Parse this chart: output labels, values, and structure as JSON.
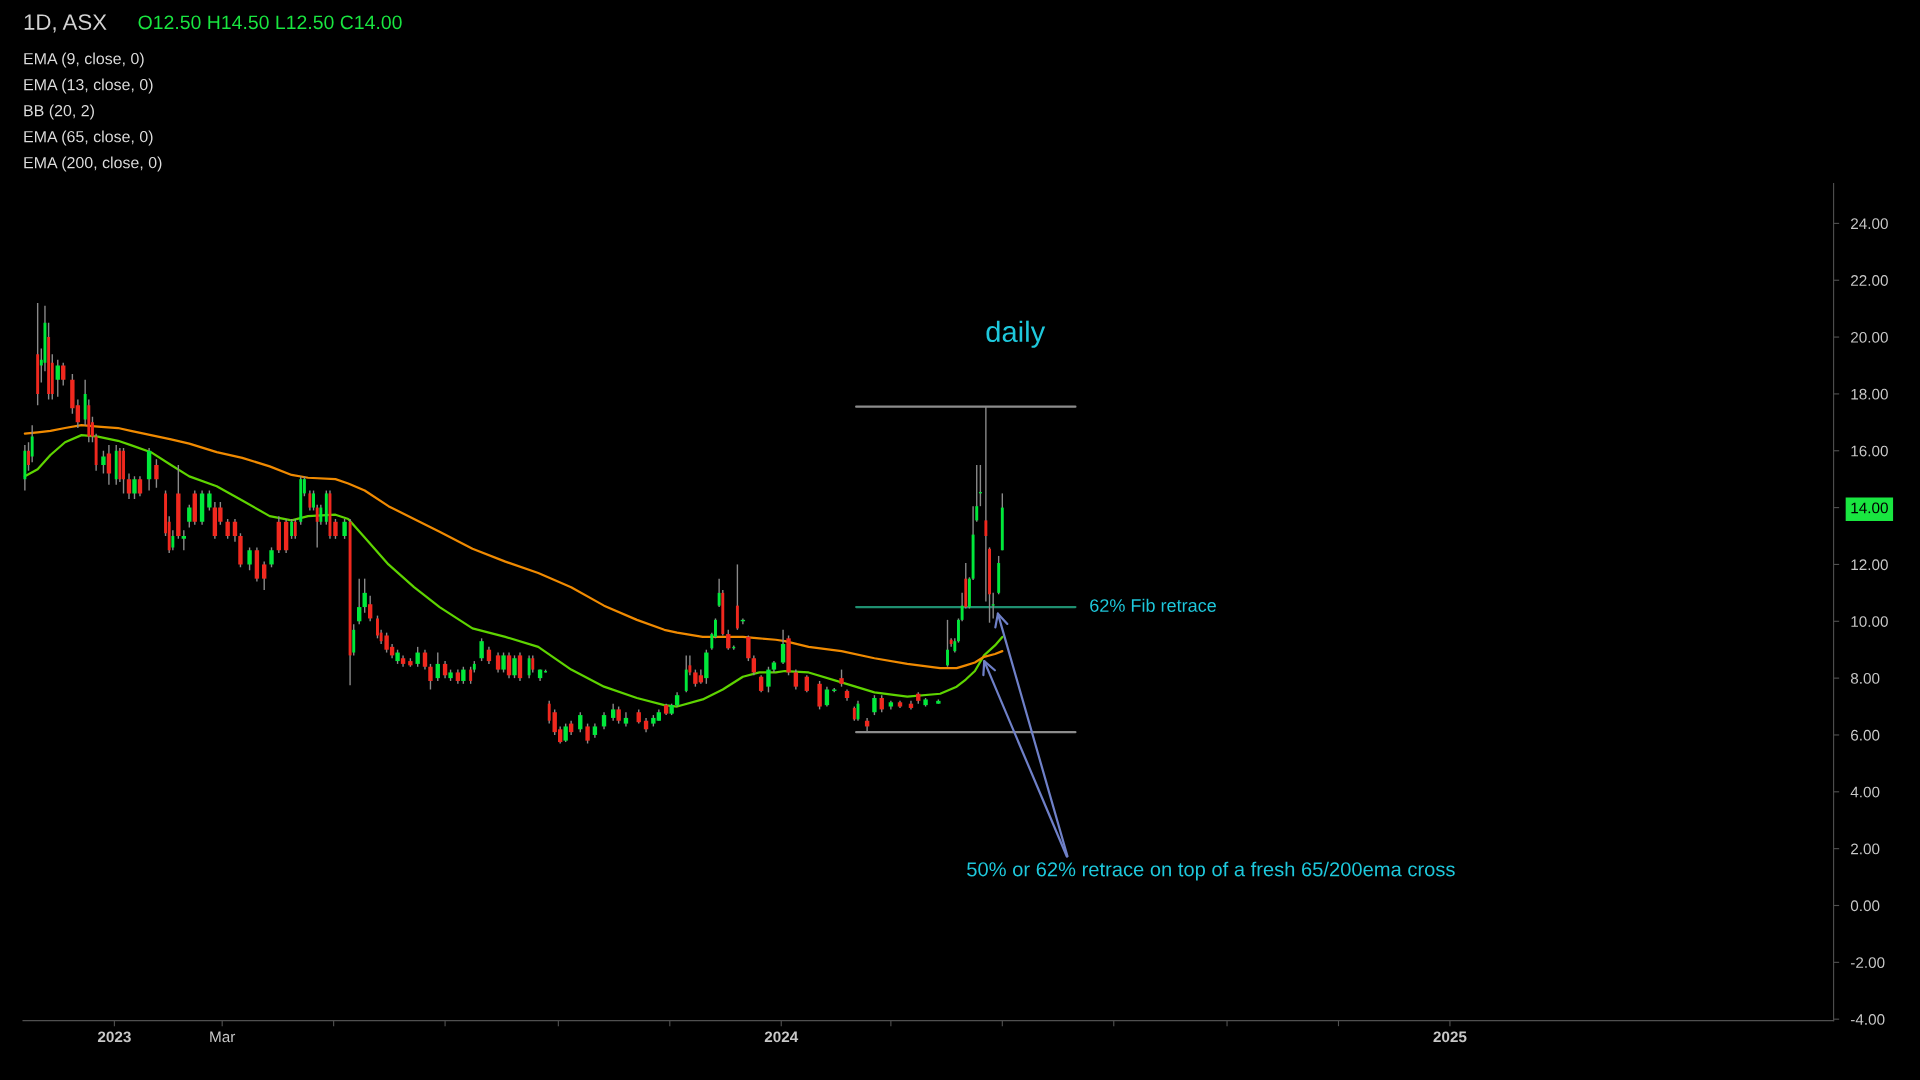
{
  "chart_data": {
    "type": "candlestick",
    "title": "daily",
    "subtitle": "1D, ASX",
    "x": [
      "2022-11-13",
      "2022-11-15",
      "2022-11-17",
      "2022-11-20",
      "2022-11-22",
      "2022-11-24",
      "2022-11-26",
      "2022-11-28",
      "2022-12-01",
      "2022-12-04",
      "2022-12-09",
      "2022-12-12",
      "2022-12-16",
      "2022-12-18",
      "2022-12-20",
      "2022-12-22",
      "2022-12-26",
      "2022-12-29",
      "2023-01-02",
      "2023-01-04",
      "2023-01-06",
      "2023-01-09",
      "2023-01-12",
      "2023-01-15",
      "2023-01-20",
      "2023-01-24",
      "2023-01-29",
      "2023-01-31",
      "2023-02-02",
      "2023-02-05",
      "2023-02-08",
      "2023-02-11",
      "2023-02-14",
      "2023-02-18",
      "2023-02-22",
      "2023-02-25",
      "2023-02-28",
      "2023-03-04",
      "2023-03-08",
      "2023-03-11",
      "2023-03-16",
      "2023-03-20",
      "2023-03-24",
      "2023-03-28",
      "2023-04-01",
      "2023-04-05",
      "2023-04-08",
      "2023-04-10",
      "2023-04-13",
      "2023-04-15",
      "2023-04-18",
      "2023-04-20",
      "2023-04-22",
      "2023-04-24",
      "2023-04-27",
      "2023-04-29",
      "2023-05-02",
      "2023-05-07",
      "2023-05-10",
      "2023-05-12",
      "2023-05-15",
      "2023-05-18",
      "2023-05-21",
      "2023-05-25",
      "2023-05-27",
      "2023-05-30",
      "2023-06-02",
      "2023-06-05",
      "2023-06-08",
      "2023-06-12",
      "2023-06-16",
      "2023-06-20",
      "2023-06-23",
      "2023-06-27",
      "2023-07-01",
      "2023-07-04",
      "2023-07-08",
      "2023-07-11",
      "2023-07-15",
      "2023-07-17",
      "2023-07-21",
      "2023-07-25",
      "2023-07-30",
      "2023-08-02",
      "2023-08-05",
      "2023-08-08",
      "2023-08-11",
      "2023-08-16",
      "2023-08-18",
      "2023-08-22",
      "2023-08-25",
      "2023-08-27",
      "2023-08-30",
      "2023-09-02",
      "2023-09-05",
      "2023-09-08",
      "2023-09-13",
      "2023-09-17",
      "2023-09-21",
      "2023-09-26",
      "2023-10-01",
      "2023-10-04",
      "2023-10-08",
      "2023-10-15",
      "2023-10-19",
      "2023-10-23",
      "2023-10-26",
      "2023-10-30",
      "2023-11-02",
      "2023-11-05",
      "2023-11-10",
      "2023-11-12",
      "2023-11-15",
      "2023-11-18",
      "2023-11-21",
      "2023-11-24",
      "2023-11-26",
      "2023-11-28",
      "2023-11-30",
      "2023-12-03",
      "2023-12-06",
      "2023-12-08",
      "2023-12-11",
      "2023-12-14",
      "2023-12-17",
      "2023-12-21",
      "2023-12-25",
      "2023-12-28",
      "2024-01-02",
      "2024-01-05",
      "2024-01-09",
      "2024-01-15",
      "2024-01-22",
      "2024-01-26",
      "2024-01-30",
      "2024-02-03",
      "2024-02-06",
      "2024-02-10",
      "2024-02-12",
      "2024-02-17",
      "2024-02-21",
      "2024-02-25",
      "2024-03-01",
      "2024-03-06",
      "2024-03-12",
      "2024-03-16",
      "2024-03-20",
      "2024-03-27",
      "2024-04-01",
      "2024-04-03",
      "2024-04-05",
      "2024-04-07",
      "2024-04-09",
      "2024-04-11",
      "2024-04-13",
      "2024-04-15",
      "2024-04-17",
      "2024-04-19",
      "2024-04-22",
      "2024-04-24",
      "2024-04-26",
      "2024-04-29",
      "2024-05-01"
    ],
    "ohlc": [
      [
        15.0,
        16.2,
        14.6,
        16.0
      ],
      [
        16.0,
        16.3,
        15.3,
        15.5
      ],
      [
        15.8,
        16.9,
        15.6,
        16.5
      ],
      [
        19.4,
        21.2,
        17.6,
        18.0
      ],
      [
        19.0,
        19.6,
        18.4,
        19.2
      ],
      [
        19.1,
        21.1,
        18.8,
        20.5
      ],
      [
        20.0,
        20.5,
        17.8,
        18.0
      ],
      [
        19.1,
        19.4,
        17.8,
        18.0
      ],
      [
        18.5,
        19.2,
        17.9,
        19.0
      ],
      [
        19.0,
        19.1,
        18.3,
        18.5
      ],
      [
        18.5,
        18.7,
        17.3,
        17.5
      ],
      [
        17.6,
        17.8,
        16.8,
        17.0
      ],
      [
        17.1,
        18.5,
        16.9,
        18.0
      ],
      [
        17.6,
        17.8,
        16.3,
        16.5
      ],
      [
        17.0,
        17.2,
        16.3,
        16.5
      ],
      [
        16.5,
        16.6,
        15.3,
        15.5
      ],
      [
        15.5,
        16.0,
        15.2,
        15.8
      ],
      [
        15.9,
        16.2,
        14.8,
        15.2
      ],
      [
        15.0,
        16.2,
        14.8,
        16.0
      ],
      [
        16.0,
        16.1,
        14.9,
        15.0
      ],
      [
        16.0,
        16.1,
        14.5,
        15.0
      ],
      [
        15.0,
        15.2,
        14.3,
        14.5
      ],
      [
        14.5,
        15.1,
        14.3,
        15.0
      ],
      [
        15.0,
        15.1,
        14.4,
        14.5
      ],
      [
        15.0,
        16.1,
        14.6,
        16.0
      ],
      [
        15.5,
        15.7,
        14.7,
        15.0
      ],
      [
        14.5,
        14.6,
        13.0,
        13.1
      ],
      [
        13.5,
        13.7,
        12.4,
        12.5
      ],
      [
        12.6,
        13.2,
        12.5,
        13.0
      ],
      [
        14.5,
        15.5,
        12.9,
        13.0
      ],
      [
        12.9,
        13.2,
        12.5,
        13.0
      ],
      [
        13.5,
        14.1,
        13.3,
        14.0
      ],
      [
        14.5,
        14.6,
        13.4,
        13.5
      ],
      [
        13.5,
        14.6,
        13.4,
        14.5
      ],
      [
        14.0,
        14.6,
        13.9,
        14.5
      ],
      [
        14.0,
        14.2,
        12.9,
        13.0
      ],
      [
        14.0,
        14.2,
        13.4,
        13.5
      ],
      [
        13.5,
        13.6,
        12.9,
        13.0
      ],
      [
        13.5,
        13.6,
        12.8,
        13.0
      ],
      [
        13.0,
        13.1,
        11.9,
        12.0
      ],
      [
        12.0,
        12.6,
        11.8,
        12.5
      ],
      [
        12.5,
        12.6,
        11.4,
        11.5
      ],
      [
        12.0,
        12.1,
        11.1,
        11.5
      ],
      [
        12.0,
        12.6,
        11.9,
        12.5
      ],
      [
        13.5,
        13.7,
        12.4,
        12.5
      ],
      [
        13.5,
        13.6,
        12.4,
        12.5
      ],
      [
        13.0,
        13.6,
        12.9,
        13.5
      ],
      [
        13.5,
        13.6,
        12.9,
        13.0
      ],
      [
        13.5,
        15.1,
        13.4,
        15.0
      ],
      [
        14.5,
        15.1,
        14.4,
        15.0
      ],
      [
        14.5,
        14.6,
        13.9,
        14.0
      ],
      [
        14.0,
        14.6,
        13.9,
        14.5
      ],
      [
        14.0,
        14.1,
        12.6,
        13.5
      ],
      [
        13.5,
        14.1,
        13.4,
        14.0
      ],
      [
        13.5,
        14.6,
        13.4,
        14.5
      ],
      [
        14.5,
        14.6,
        12.9,
        13.0
      ],
      [
        13.5,
        13.6,
        12.9,
        13.0
      ],
      [
        13.0,
        13.6,
        12.9,
        13.5
      ],
      [
        13.5,
        13.6,
        7.75,
        8.8
      ],
      [
        8.9,
        9.9,
        8.8,
        9.7
      ],
      [
        10.0,
        11.5,
        9.9,
        10.5
      ],
      [
        10.5,
        11.5,
        10.3,
        11.0
      ],
      [
        10.6,
        10.9,
        10.0,
        10.1
      ],
      [
        10.1,
        10.2,
        9.4,
        9.5
      ],
      [
        9.6,
        9.7,
        9.2,
        9.3
      ],
      [
        9.5,
        9.6,
        8.9,
        9.0
      ],
      [
        9.1,
        9.2,
        8.7,
        8.8
      ],
      [
        8.6,
        9.0,
        8.5,
        8.9
      ],
      [
        8.7,
        8.8,
        8.4,
        8.5
      ],
      [
        8.6,
        8.7,
        8.4,
        8.45
      ],
      [
        8.5,
        9.1,
        8.4,
        8.9
      ],
      [
        8.9,
        9.0,
        8.3,
        8.4
      ],
      [
        8.4,
        8.5,
        7.6,
        7.9
      ],
      [
        8.0,
        8.9,
        7.9,
        8.5
      ],
      [
        8.5,
        8.6,
        8.0,
        8.1
      ],
      [
        8.0,
        8.3,
        7.9,
        8.2
      ],
      [
        8.2,
        8.3,
        7.8,
        7.9
      ],
      [
        7.9,
        8.4,
        7.8,
        8.3
      ],
      [
        8.3,
        8.4,
        7.8,
        7.9
      ],
      [
        8.3,
        8.6,
        8.2,
        8.5
      ],
      [
        8.7,
        9.4,
        8.6,
        9.3
      ],
      [
        9.0,
        9.1,
        8.5,
        8.6
      ],
      [
        8.8,
        8.9,
        8.2,
        8.3
      ],
      [
        8.3,
        8.9,
        8.2,
        8.8
      ],
      [
        8.8,
        8.9,
        8.0,
        8.1
      ],
      [
        8.1,
        8.8,
        8.0,
        8.7
      ],
      [
        8.8,
        8.9,
        7.9,
        8.0
      ],
      [
        8.1,
        8.8,
        8.0,
        8.7
      ],
      [
        8.7,
        8.8,
        8.2,
        8.3
      ],
      [
        8.0,
        8.3,
        7.9,
        8.3
      ],
      [
        8.2,
        8.3,
        8.2,
        8.25
      ],
      [
        7.1,
        7.2,
        6.4,
        6.5
      ],
      [
        6.8,
        6.9,
        6.0,
        6.1
      ],
      [
        6.2,
        6.3,
        5.7,
        5.75
      ],
      [
        5.8,
        6.4,
        5.75,
        6.3
      ],
      [
        6.4,
        6.5,
        6.0,
        6.1
      ],
      [
        6.2,
        6.8,
        6.1,
        6.7
      ],
      [
        6.3,
        6.4,
        5.7,
        5.8
      ],
      [
        6.0,
        6.4,
        5.9,
        6.3
      ],
      [
        6.3,
        6.8,
        6.2,
        6.7
      ],
      [
        6.6,
        7.1,
        6.5,
        6.9
      ],
      [
        6.9,
        7.0,
        6.4,
        6.5
      ],
      [
        6.4,
        6.8,
        6.3,
        6.6
      ],
      [
        6.8,
        6.9,
        6.4,
        6.45
      ],
      [
        6.5,
        6.6,
        6.1,
        6.2
      ],
      [
        6.4,
        6.7,
        6.3,
        6.6
      ],
      [
        6.5,
        6.9,
        6.5,
        6.8
      ],
      [
        7.05,
        7.1,
        6.7,
        6.75
      ],
      [
        6.75,
        7.1,
        6.7,
        7.05
      ],
      [
        7.05,
        7.5,
        7.0,
        7.4
      ],
      [
        7.55,
        8.8,
        7.5,
        8.3
      ],
      [
        8.45,
        8.8,
        8.1,
        8.2
      ],
      [
        8.2,
        8.3,
        7.7,
        7.8
      ],
      [
        8.1,
        8.3,
        7.8,
        7.85
      ],
      [
        8.0,
        9.0,
        7.8,
        8.9
      ],
      [
        9.05,
        9.6,
        9.0,
        9.55
      ],
      [
        9.45,
        10.1,
        9.4,
        10.05
      ],
      [
        10.55,
        11.5,
        10.5,
        11.0
      ],
      [
        11.0,
        11.1,
        9.5,
        9.55
      ],
      [
        9.55,
        9.7,
        9.0,
        9.05
      ],
      [
        9.05,
        9.15,
        9.0,
        9.1
      ],
      [
        10.55,
        12.0,
        9.7,
        9.75
      ],
      [
        10.0,
        10.1,
        9.9,
        10.05
      ],
      [
        9.45,
        9.5,
        8.6,
        8.7
      ],
      [
        8.7,
        8.8,
        8.1,
        8.2
      ],
      [
        8.05,
        8.1,
        7.5,
        7.55
      ],
      [
        7.7,
        8.4,
        7.5,
        8.3
      ],
      [
        8.3,
        8.6,
        8.2,
        8.55
      ],
      [
        8.55,
        9.7,
        8.5,
        9.2
      ],
      [
        9.4,
        9.5,
        8.1,
        8.2
      ],
      [
        8.2,
        8.3,
        7.6,
        7.7
      ],
      [
        8.05,
        8.1,
        7.5,
        7.55
      ],
      [
        7.8,
        7.9,
        6.9,
        7.0
      ],
      [
        7.05,
        7.7,
        7.0,
        7.6
      ],
      [
        7.55,
        7.65,
        7.5,
        7.6
      ],
      [
        8.0,
        8.3,
        7.7,
        7.8
      ],
      [
        7.55,
        7.6,
        7.2,
        7.3
      ],
      [
        6.95,
        7.0,
        6.5,
        6.55
      ],
      [
        6.55,
        7.2,
        6.5,
        7.1
      ],
      [
        6.5,
        6.6,
        6.1,
        6.3
      ],
      [
        6.8,
        7.4,
        6.7,
        7.3
      ],
      [
        7.3,
        7.4,
        6.8,
        6.9
      ],
      [
        7.0,
        7.2,
        6.9,
        7.15
      ],
      [
        7.15,
        7.2,
        6.95,
        7.0
      ],
      [
        7.1,
        7.2,
        6.9,
        6.95
      ],
      [
        7.45,
        7.5,
        7.1,
        7.2
      ],
      [
        7.05,
        7.3,
        7.0,
        7.25
      ],
      [
        7.1,
        7.25,
        7.1,
        7.2
      ],
      [
        8.45,
        10.05,
        8.4,
        9.0
      ],
      [
        9.35,
        9.4,
        9.1,
        9.2
      ],
      [
        8.95,
        9.4,
        8.9,
        9.3
      ],
      [
        9.3,
        10.1,
        9.25,
        10.05
      ],
      [
        10.05,
        11.0,
        10.0,
        10.55
      ],
      [
        11.5,
        12.05,
        10.45,
        10.5
      ],
      [
        10.5,
        11.55,
        10.45,
        11.5
      ],
      [
        11.5,
        14.05,
        11.45,
        13.05
      ],
      [
        13.55,
        15.5,
        13.5,
        14.05
      ],
      [
        14.5,
        15.5,
        14.05,
        14.55
      ],
      [
        13.55,
        17.55,
        10.7,
        13.0
      ],
      [
        12.55,
        12.6,
        9.95,
        10.95
      ],
      [
        10.55,
        11.0,
        10.1,
        10.6
      ],
      [
        11.0,
        12.3,
        10.95,
        12.05
      ],
      [
        12.5,
        14.5,
        12.5,
        14.0
      ]
    ],
    "colors": [
      "#00e83a",
      "#f0281e",
      "#00e83a",
      "#f0281e",
      "#00e83a",
      "#00e83a",
      "#f0281e",
      "#f0281e",
      "#00e83a",
      "#f0281e",
      "#f0281e",
      "#f0281e",
      "#00e83a",
      "#f0281e",
      "#f0281e",
      "#f0281e",
      "#00e83a",
      "#f0281e",
      "#00e83a",
      "#f0281e",
      "#f0281e",
      "#f0281e",
      "#00e83a",
      "#f0281e",
      "#00e83a",
      "#f0281e",
      "#f0281e",
      "#f0281e",
      "#00e83a",
      "#f0281e",
      "#00e83a",
      "#00e83a",
      "#f0281e",
      "#00e83a",
      "#00e83a",
      "#f0281e",
      "#f0281e",
      "#f0281e",
      "#f0281e",
      "#f0281e",
      "#00e83a",
      "#f0281e",
      "#f0281e",
      "#00e83a",
      "#f0281e",
      "#f0281e",
      "#00e83a",
      "#f0281e",
      "#00e83a",
      "#00e83a",
      "#f0281e",
      "#00e83a",
      "#f0281e",
      "#00e83a",
      "#00e83a",
      "#f0281e",
      "#f0281e",
      "#00e83a",
      "#f0281e",
      "#00e83a",
      "#00e83a",
      "#00e83a",
      "#f0281e",
      "#f0281e",
      "#f0281e",
      "#f0281e",
      "#f0281e",
      "#00e83a",
      "#f0281e",
      "#f0281e",
      "#00e83a",
      "#f0281e",
      "#f0281e",
      "#00e83a",
      "#f0281e",
      "#00e83a",
      "#f0281e",
      "#00e83a",
      "#f0281e",
      "#00e83a",
      "#00e83a",
      "#f0281e",
      "#f0281e",
      "#00e83a",
      "#f0281e",
      "#00e83a",
      "#f0281e",
      "#00e83a",
      "#f0281e",
      "#00e83a",
      "#00e83a",
      "#f0281e",
      "#f0281e",
      "#f0281e",
      "#00e83a",
      "#f0281e",
      "#00e83a",
      "#f0281e",
      "#00e83a",
      "#00e83a",
      "#00e83a",
      "#f0281e",
      "#00e83a",
      "#f0281e",
      "#f0281e",
      "#00e83a",
      "#00e83a",
      "#f0281e",
      "#00e83a",
      "#00e83a",
      "#00e83a",
      "#f0281e",
      "#f0281e",
      "#f0281e",
      "#00e83a",
      "#00e83a",
      "#00e83a",
      "#00e83a",
      "#f0281e",
      "#f0281e",
      "#00e83a",
      "#f0281e",
      "#00e83a",
      "#f0281e",
      "#f0281e",
      "#f0281e",
      "#00e83a",
      "#00e83a",
      "#00e83a",
      "#f0281e",
      "#f0281e",
      "#f0281e",
      "#f0281e",
      "#00e83a",
      "#00e83a",
      "#f0281e",
      "#f0281e",
      "#f0281e",
      "#00e83a",
      "#f0281e",
      "#00e83a",
      "#f0281e",
      "#00e83a",
      "#f0281e",
      "#f0281e",
      "#f0281e",
      "#00e83a",
      "#00e83a",
      "#00e83a",
      "#f0281e",
      "#00e83a",
      "#00e83a",
      "#00e83a",
      "#f0281e",
      "#00e83a",
      "#00e83a",
      "#00e83a",
      "#00e83a",
      "#f0281e",
      "#f0281e",
      "#00e83a",
      "#00e83a",
      "#00e83a"
    ],
    "series": [
      {
        "type": "line",
        "color": "#5ed400",
        "x": [
          "2022-11-13",
          "2022-11-20",
          "2022-11-27",
          "2022-12-05",
          "2022-12-14",
          "2022-12-23",
          "2023-01-03",
          "2023-01-10",
          "2023-01-21",
          "2023-02-01",
          "2023-02-11",
          "2023-02-26",
          "2023-03-12",
          "2023-03-27",
          "2023-04-08",
          "2023-04-17",
          "2023-05-02",
          "2023-05-09",
          "2023-05-18",
          "2023-05-31",
          "2023-06-14",
          "2023-06-28",
          "2023-07-16",
          "2023-08-03",
          "2023-08-21",
          "2023-09-08",
          "2023-09-26",
          "2023-10-14",
          "2023-10-29",
          "2023-11-05",
          "2023-11-19",
          "2023-11-30",
          "2023-12-11",
          "2023-12-20",
          "2023-12-29",
          "2024-01-03",
          "2024-01-16",
          "2024-02-03",
          "2024-02-21",
          "2024-03-10",
          "2024-03-28",
          "2024-04-06",
          "2024-04-11",
          "2024-04-16",
          "2024-04-21",
          "2024-04-27",
          "2024-05-01"
        ],
        "values": [
          15.1,
          15.35,
          15.85,
          16.3,
          16.55,
          16.5,
          16.35,
          16.2,
          15.95,
          15.5,
          15.1,
          14.75,
          14.25,
          13.7,
          13.55,
          13.7,
          13.75,
          13.6,
          12.95,
          12.0,
          11.2,
          10.5,
          9.75,
          9.45,
          9.1,
          8.3,
          7.7,
          7.3,
          7.05,
          7.0,
          7.25,
          7.6,
          8.05,
          8.2,
          8.2,
          8.25,
          8.2,
          7.85,
          7.5,
          7.35,
          7.45,
          7.7,
          7.95,
          8.25,
          8.8,
          9.15,
          9.45
        ]
      },
      {
        "type": "line",
        "color": "#f08a00",
        "x": [
          "2022-11-13",
          "2022-11-20",
          "2022-11-27",
          "2022-12-05",
          "2022-12-14",
          "2022-12-23",
          "2023-01-03",
          "2023-01-10",
          "2023-01-21",
          "2023-02-01",
          "2023-02-11",
          "2023-02-26",
          "2023-03-12",
          "2023-03-27",
          "2023-04-08",
          "2023-04-17",
          "2023-05-02",
          "2023-05-09",
          "2023-05-18",
          "2023-05-31",
          "2023-06-14",
          "2023-06-28",
          "2023-07-16",
          "2023-08-03",
          "2023-08-21",
          "2023-09-08",
          "2023-09-26",
          "2023-10-14",
          "2023-10-29",
          "2023-11-05",
          "2023-11-19",
          "2023-11-30",
          "2023-12-11",
          "2023-12-20",
          "2023-12-29",
          "2024-01-03",
          "2024-01-16",
          "2024-02-03",
          "2024-02-21",
          "2024-03-10",
          "2024-03-28",
          "2024-04-06",
          "2024-04-11",
          "2024-04-16",
          "2024-04-21",
          "2024-04-27",
          "2024-05-01"
        ],
        "values": [
          16.6,
          16.65,
          16.7,
          16.8,
          16.9,
          16.85,
          16.8,
          16.7,
          16.55,
          16.4,
          16.25,
          15.95,
          15.75,
          15.45,
          15.15,
          15.05,
          15.0,
          14.85,
          14.6,
          14.05,
          13.6,
          13.15,
          12.55,
          12.1,
          11.7,
          11.2,
          10.55,
          10.05,
          9.7,
          9.6,
          9.45,
          9.45,
          9.45,
          9.4,
          9.35,
          9.3,
          9.1,
          8.95,
          8.7,
          8.5,
          8.35,
          8.35,
          8.45,
          8.55,
          8.75,
          8.85,
          8.95
        ]
      },
      {
        "type": "line",
        "color": "#8c8c8c",
        "x": [
          "2024-02-11",
          "2024-06-10"
        ],
        "values": [
          17.55,
          17.55
        ]
      },
      {
        "type": "line",
        "name": "62% Fib retrace",
        "color": "#1f8f70",
        "x": [
          "2024-02-11",
          "2024-06-10"
        ],
        "values": [
          10.5,
          10.5
        ]
      },
      {
        "type": "line",
        "color": "#8c8c8c",
        "x": [
          "2024-02-11",
          "2024-06-10"
        ],
        "values": [
          6.1,
          6.1
        ]
      }
    ],
    "xlim": [
      "2022-11-12",
      "2025-07-30"
    ],
    "xticks": [
      {
        "value": "2023-01-01",
        "label": "2023"
      },
      {
        "value": "2023-03-01",
        "label": "Mar"
      },
      {
        "value": "2023-05-01",
        "label": null
      },
      {
        "value": "2023-07-01",
        "label": null
      },
      {
        "value": "2023-09-01",
        "label": null
      },
      {
        "value": "2023-11-01",
        "label": null
      },
      {
        "value": "2024-01-01",
        "label": "2024"
      },
      {
        "value": "2024-03-01",
        "label": null
      },
      {
        "value": "2024-05-01",
        "label": null
      },
      {
        "value": "2024-07-01",
        "label": null
      },
      {
        "value": "2024-09-01",
        "label": null
      },
      {
        "value": "2024-11-01",
        "label": null
      },
      {
        "value": "2025-01-01",
        "label": "2025"
      }
    ],
    "ylim": [
      -4.05,
      25.4
    ],
    "yticks": [
      {
        "value": -4,
        "label": "-4.00"
      },
      {
        "value": -2,
        "label": "-2.00"
      },
      {
        "value": 0,
        "label": "0.00"
      },
      {
        "value": 2,
        "label": "2.00"
      },
      {
        "value": 4,
        "label": "4.00"
      },
      {
        "value": 6,
        "label": "6.00"
      },
      {
        "value": 8,
        "label": "8.00"
      },
      {
        "value": 10,
        "label": "10.00"
      },
      {
        "value": 12,
        "label": "12.00"
      },
      {
        "value": 14,
        "label": "14.00"
      },
      {
        "value": 16,
        "label": "16.00"
      },
      {
        "value": 18,
        "label": "18.00"
      },
      {
        "value": 20,
        "label": "20.00"
      },
      {
        "value": 22,
        "label": "22.00"
      },
      {
        "value": 24,
        "label": "24.00"
      }
    ],
    "annotations": [
      "O12.50 H14.50 L12.50 C14.00",
      "EMA (9, close, 0)",
      "EMA (13, close, 0)",
      "BB (20, 2)",
      "EMA (65, close, 0)",
      "EMA (200, close, 0)",
      {
        "text": "50% or 62% retrace on top of a fresh 65/200ema cross",
        "x": "2024-04-28",
        "y": 10.4
      }
    ]
  }
}
